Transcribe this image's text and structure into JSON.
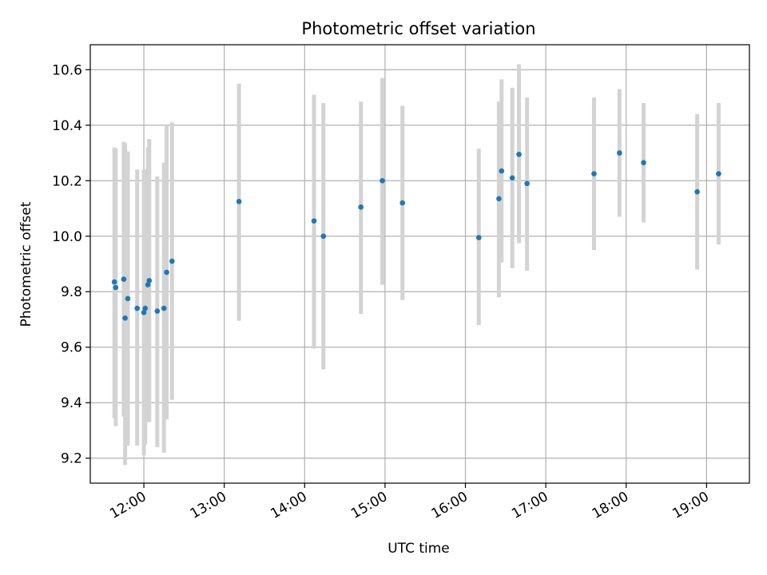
{
  "chart_data": {
    "type": "scatter",
    "title": "Photometric offset variation",
    "xlabel": "UTC time",
    "ylabel": "Photometric offset",
    "x_unit": "UTC time (HH:MM)",
    "xlim": [
      "11:20",
      "19:32"
    ],
    "ylim": [
      9.11,
      10.69
    ],
    "xticks": [
      "12:00",
      "13:00",
      "14:00",
      "15:00",
      "16:00",
      "17:00",
      "18:00",
      "19:00"
    ],
    "yticks": [
      9.2,
      9.4,
      9.6,
      9.8,
      10.0,
      10.2,
      10.4,
      10.6
    ],
    "ytick_labels": [
      "9.2",
      "9.4",
      "9.6",
      "9.8",
      "10.0",
      "10.2",
      "10.4",
      "10.6"
    ],
    "grid": true,
    "legend": false,
    "marker_color": "#1f77b4",
    "errorbar_color": "#d3d3d3",
    "series": [
      {
        "points": [
          {
            "x": "11:38",
            "y": 9.835,
            "low": 9.345,
            "high": 10.32
          },
          {
            "x": "11:39",
            "y": 9.815,
            "low": 9.315,
            "high": 10.315
          },
          {
            "x": "11:45",
            "y": 9.845,
            "low": 9.35,
            "high": 10.34
          },
          {
            "x": "11:46",
            "y": 9.705,
            "low": 9.175,
            "high": 10.335
          },
          {
            "x": "11:48",
            "y": 9.775,
            "low": 9.245,
            "high": 10.305
          },
          {
            "x": "11:55",
            "y": 9.74,
            "low": 9.245,
            "high": 10.24
          },
          {
            "x": "12:00",
            "y": 9.725,
            "low": 9.21,
            "high": 10.24
          },
          {
            "x": "12:01",
            "y": 9.74,
            "low": 9.25,
            "high": 10.24
          },
          {
            "x": "12:03",
            "y": 9.825,
            "low": 9.33,
            "high": 10.32
          },
          {
            "x": "12:04",
            "y": 9.84,
            "low": 9.33,
            "high": 10.35
          },
          {
            "x": "12:10",
            "y": 9.73,
            "low": 9.24,
            "high": 10.215
          },
          {
            "x": "12:15",
            "y": 9.74,
            "low": 9.22,
            "high": 10.265
          },
          {
            "x": "12:17",
            "y": 9.87,
            "low": 9.34,
            "high": 10.4
          },
          {
            "x": "12:21",
            "y": 9.91,
            "low": 9.41,
            "high": 10.41
          },
          {
            "x": "13:11",
            "y": 10.125,
            "low": 9.695,
            "high": 10.55
          },
          {
            "x": "14:07",
            "y": 10.055,
            "low": 9.595,
            "high": 10.51
          },
          {
            "x": "14:14",
            "y": 10.0,
            "low": 9.52,
            "high": 10.48
          },
          {
            "x": "14:42",
            "y": 10.105,
            "low": 9.72,
            "high": 10.485
          },
          {
            "x": "14:58",
            "y": 10.2,
            "low": 9.825,
            "high": 10.57
          },
          {
            "x": "15:13",
            "y": 10.12,
            "low": 9.77,
            "high": 10.47
          },
          {
            "x": "16:10",
            "y": 9.995,
            "low": 9.68,
            "high": 10.315
          },
          {
            "x": "16:25",
            "y": 10.135,
            "low": 9.78,
            "high": 10.485
          },
          {
            "x": "16:27",
            "y": 10.235,
            "low": 9.905,
            "high": 10.565
          },
          {
            "x": "16:35",
            "y": 10.21,
            "low": 9.885,
            "high": 10.535
          },
          {
            "x": "16:40",
            "y": 10.295,
            "low": 9.975,
            "high": 10.62
          },
          {
            "x": "16:46",
            "y": 10.19,
            "low": 9.875,
            "high": 10.5
          },
          {
            "x": "17:36",
            "y": 10.225,
            "low": 9.95,
            "high": 10.5
          },
          {
            "x": "17:55",
            "y": 10.3,
            "low": 10.07,
            "high": 10.53
          },
          {
            "x": "18:13",
            "y": 10.265,
            "low": 10.05,
            "high": 10.48
          },
          {
            "x": "18:53",
            "y": 10.16,
            "low": 9.88,
            "high": 10.44
          },
          {
            "x": "19:09",
            "y": 10.225,
            "low": 9.97,
            "high": 10.48
          }
        ]
      }
    ]
  }
}
